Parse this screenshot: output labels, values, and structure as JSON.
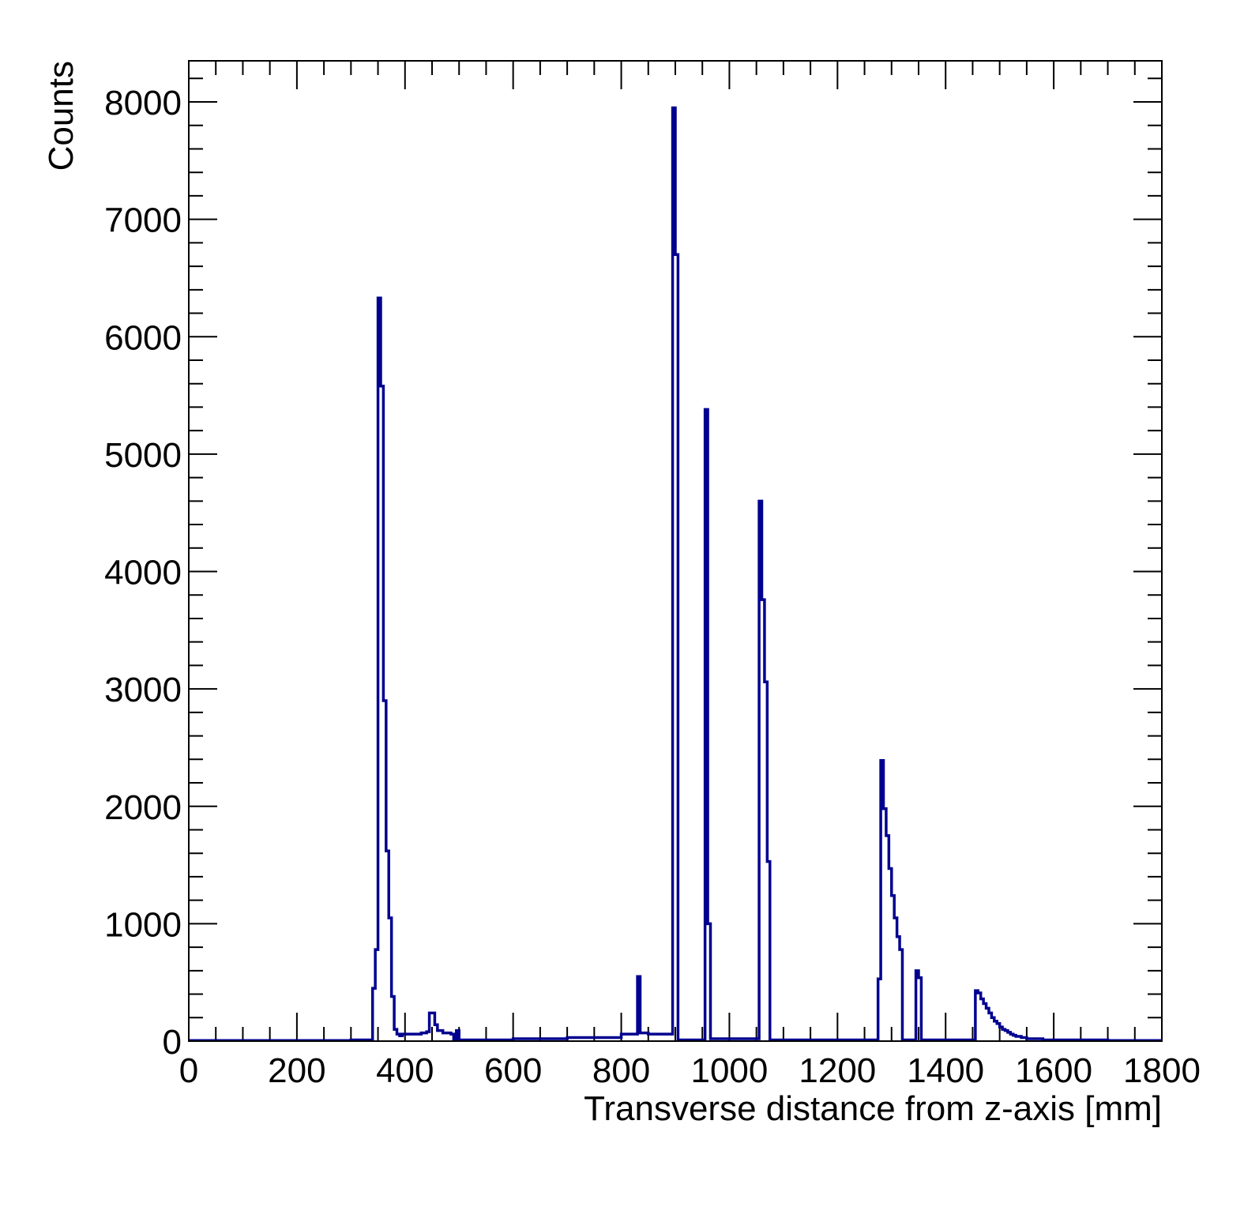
{
  "chart_data": {
    "type": "histogram",
    "xlabel": "Transverse distance from z-axis [mm]",
    "ylabel": "Counts",
    "xlim": [
      0,
      1800
    ],
    "ylim": [
      0,
      8350
    ],
    "bin_width": 5,
    "x_ticks": [
      0,
      200,
      400,
      600,
      800,
      1000,
      1200,
      1400,
      1600,
      1800
    ],
    "x_tick_labels": [
      "0",
      "200",
      "400",
      "600",
      "800",
      "1000",
      "1200",
      "1400",
      "1600",
      "1800"
    ],
    "y_ticks": [
      0,
      1000,
      2000,
      3000,
      4000,
      5000,
      6000,
      7000,
      8000
    ],
    "y_tick_labels": [
      "0",
      "1000",
      "2000",
      "3000",
      "4000",
      "5000",
      "6000",
      "7000",
      "8000"
    ],
    "grid": false,
    "line_color": "#00008f",
    "bins": [
      [
        0,
        5
      ],
      [
        300,
        10
      ],
      [
        340,
        450
      ],
      [
        345,
        780
      ],
      [
        350,
        6330
      ],
      [
        355,
        5580
      ],
      [
        360,
        2900
      ],
      [
        365,
        1620
      ],
      [
        370,
        1050
      ],
      [
        375,
        380
      ],
      [
        380,
        100
      ],
      [
        385,
        60
      ],
      [
        390,
        45
      ],
      [
        395,
        60
      ],
      [
        400,
        60
      ],
      [
        425,
        60
      ],
      [
        430,
        70
      ],
      [
        440,
        80
      ],
      [
        445,
        240
      ],
      [
        455,
        140
      ],
      [
        460,
        90
      ],
      [
        470,
        70
      ],
      [
        485,
        60
      ],
      [
        490,
        10
      ],
      [
        495,
        90
      ],
      [
        500,
        10
      ],
      [
        600,
        20
      ],
      [
        700,
        30
      ],
      [
        800,
        60
      ],
      [
        830,
        550
      ],
      [
        835,
        70
      ],
      [
        850,
        60
      ],
      [
        895,
        7950
      ],
      [
        900,
        6700
      ],
      [
        905,
        10
      ],
      [
        955,
        5380
      ],
      [
        960,
        1000
      ],
      [
        965,
        20
      ],
      [
        1055,
        4600
      ],
      [
        1060,
        3760
      ],
      [
        1065,
        3060
      ],
      [
        1070,
        1530
      ],
      [
        1075,
        10
      ],
      [
        1275,
        530
      ],
      [
        1280,
        2390
      ],
      [
        1285,
        1980
      ],
      [
        1290,
        1750
      ],
      [
        1295,
        1470
      ],
      [
        1300,
        1240
      ],
      [
        1305,
        1050
      ],
      [
        1310,
        890
      ],
      [
        1315,
        780
      ],
      [
        1320,
        10
      ],
      [
        1345,
        600
      ],
      [
        1350,
        540
      ],
      [
        1355,
        10
      ],
      [
        1455,
        430
      ],
      [
        1460,
        410
      ],
      [
        1465,
        360
      ],
      [
        1470,
        320
      ],
      [
        1475,
        280
      ],
      [
        1480,
        240
      ],
      [
        1485,
        200
      ],
      [
        1490,
        170
      ],
      [
        1495,
        150
      ],
      [
        1500,
        120
      ],
      [
        1505,
        100
      ],
      [
        1510,
        90
      ],
      [
        1515,
        75
      ],
      [
        1520,
        60
      ],
      [
        1525,
        50
      ],
      [
        1530,
        40
      ],
      [
        1540,
        30
      ],
      [
        1550,
        20
      ],
      [
        1580,
        10
      ],
      [
        1700,
        5
      ],
      [
        1795,
        5
      ]
    ]
  }
}
